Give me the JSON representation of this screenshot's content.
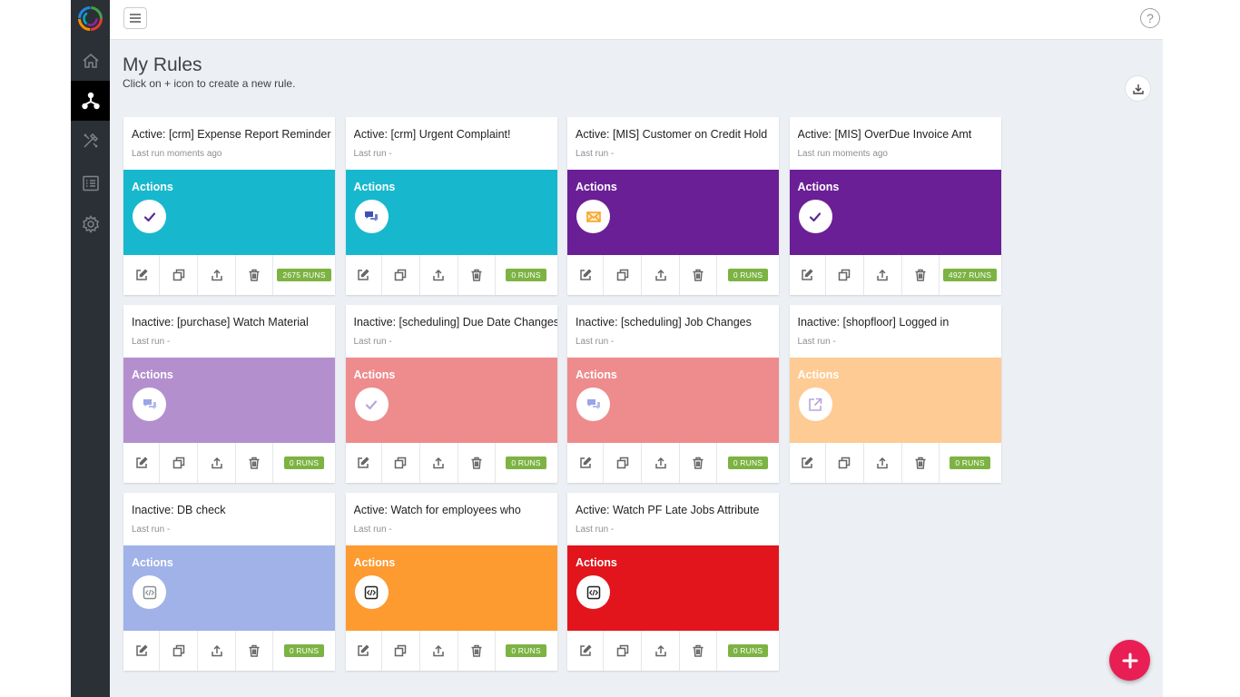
{
  "header": {
    "title": "My Rules",
    "subtitle": "Click on + icon to create a new rule."
  },
  "sidebar": {
    "items": [
      {
        "name": "home-icon",
        "active": false
      },
      {
        "name": "rules-icon",
        "active": true
      },
      {
        "name": "tools-icon",
        "active": false
      },
      {
        "name": "list-icon",
        "active": false
      },
      {
        "name": "gear-icon",
        "active": false
      }
    ]
  },
  "help_label": "?",
  "actions_label": "Actions",
  "colors": {
    "cyan": "#17b8ce",
    "purple": "#6a1f96",
    "lavender": "#b48fce",
    "salmon": "#ee8b8c",
    "peach": "#fdcb93",
    "periwinkle": "#a0b2e7",
    "orange": "#fd9a30",
    "red": "#e2151c",
    "runs_green": "#7cb342",
    "fab": "#e91e55"
  },
  "cards": [
    {
      "title": "Active: [crm] Expense Report Reminder",
      "last_run": "Last run moments ago",
      "runs": "2675 RUNS",
      "color": "#17b8ce",
      "action_icon": "check-icon",
      "icon_color": "#5b2d8e"
    },
    {
      "title": "Active: [crm] Urgent Complaint!",
      "last_run": "Last run -",
      "runs": "0 RUNS",
      "color": "#17b8ce",
      "action_icon": "chat-icon",
      "icon_color": "#3f51b5"
    },
    {
      "title": "Active: [MIS] Customer on Credit Hold",
      "last_run": "Last run -",
      "runs": "0 RUNS",
      "color": "#6a1f96",
      "action_icon": "email-icon",
      "icon_color": "#f5a623"
    },
    {
      "title": "Active: [MIS] OverDue Invoice Amt",
      "last_run": "Last run moments ago",
      "runs": "4927 RUNS",
      "color": "#6a1f96",
      "action_icon": "check-icon",
      "icon_color": "#5b2d8e"
    },
    {
      "title": "Inactive: [purchase] Watch Material",
      "last_run": "Last run -",
      "runs": "0 RUNS",
      "color": "#b48fce",
      "action_icon": "chat-icon",
      "icon_color": "#9aa4e8"
    },
    {
      "title": "Inactive: [scheduling] Due Date Changes",
      "last_run": "Last run -",
      "runs": "0 RUNS",
      "color": "#ee8b8c",
      "action_icon": "check-icon",
      "icon_color": "#b9a6dc"
    },
    {
      "title": "Inactive: [scheduling] Job Changes",
      "last_run": "Last run -",
      "runs": "0 RUNS",
      "color": "#ee8b8c",
      "action_icon": "chat-icon",
      "icon_color": "#9aa4e8"
    },
    {
      "title": "Inactive: [shopfloor] Logged in",
      "last_run": "Last run -",
      "runs": "0 RUNS",
      "color": "#fdcb93",
      "action_icon": "external-link-icon",
      "icon_color": "#b9a6dc"
    },
    {
      "title": "Inactive: DB check",
      "last_run": "Last run -",
      "runs": "0 RUNS",
      "color": "#a0b2e7",
      "action_icon": "code-icon",
      "icon_color": "#8a8f94"
    },
    {
      "title": "Active: Watch for employees who",
      "last_run": "Last run -",
      "runs": "0 RUNS",
      "color": "#fd9a30",
      "action_icon": "code-icon",
      "icon_color": "#222222"
    },
    {
      "title": "Active: Watch PF Late Jobs Attribute",
      "last_run": "Last run -",
      "runs": "0 RUNS",
      "color": "#e2151c",
      "action_icon": "code-icon",
      "icon_color": "#222222"
    }
  ]
}
